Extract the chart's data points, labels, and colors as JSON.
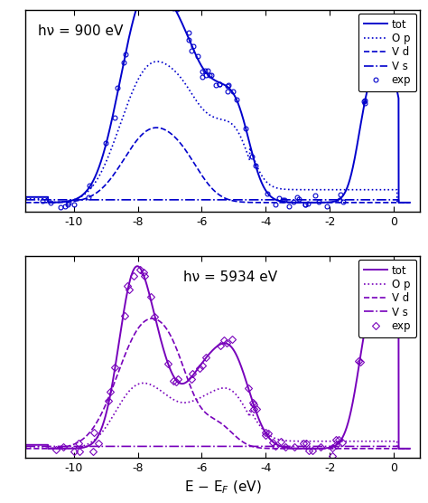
{
  "color1": "#0000CC",
  "color2": "#7700BB",
  "xlim": [
    -11.5,
    0.8
  ],
  "ylim1": [
    -0.05,
    1.05
  ],
  "ylim2": [
    -0.05,
    1.05
  ],
  "xticks": [
    -10,
    -8,
    -6,
    -4,
    -2,
    0
  ],
  "panel1_label": "hν = 900 eV",
  "panel2_label": "hν = 5934 eV",
  "xlabel": "E - E$_{F}$ (eV)",
  "legend_labels": [
    "tot",
    "O p",
    "V d",
    "V s",
    "exp"
  ],
  "title_fontsize": 11,
  "legend_fontsize": 8.5,
  "tick_fontsize": 9,
  "xlabel_fontsize": 11
}
